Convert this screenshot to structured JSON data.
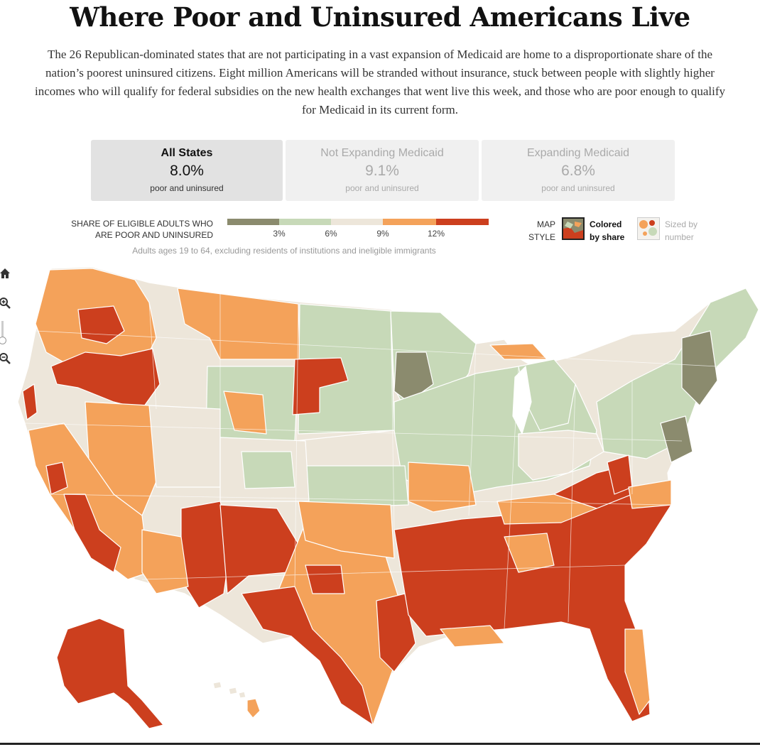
{
  "headline": "Where Poor and Uninsured Americans Live",
  "summary": "The 26 Republican-dominated states that are not participating in a vast expansion of Medicaid are home to a disproportionate share of the nation’s poorest uninsured citizens. Eight million Americans will be stranded without insurance, stuck between people with slightly higher incomes who will qualify for federal subsidies on the new health exchanges that went live this week, and those who are poor enough to qualify for Medicaid in its current form.",
  "tabs": [
    {
      "title": "All States",
      "value": "8.0%",
      "sub": "poor and uninsured"
    },
    {
      "title": "Not Expanding Medicaid",
      "value": "9.1%",
      "sub": "poor and uninsured"
    },
    {
      "title": "Expanding Medicaid",
      "value": "6.8%",
      "sub": "poor and uninsured"
    }
  ],
  "legend": {
    "title_line1": "Share of eligible adults who",
    "title_line2": "are poor and uninsured",
    "ticks": [
      "3%",
      "6%",
      "9%",
      "12%"
    ],
    "note": "Adults ages 19 to 64, excluding residents of institutions and ineligible immigrants",
    "colors": [
      "#8b8b6e",
      "#c7d9b8",
      "#ede6da",
      "#f4a25a",
      "#cc3f1e"
    ]
  },
  "map_style": {
    "label_line1": "MAP",
    "label_line2": "STYLE",
    "option1_line1": "Colored",
    "option1_line2": "by share",
    "option2_line1": "Sized by",
    "option2_line2": "number"
  },
  "colors": {
    "lowest": "#8b8b6e",
    "low": "#c7d9b8",
    "mid": "#ede6da",
    "high": "#f4a25a",
    "highest": "#cc3f1e",
    "border": "#ffffff"
  }
}
